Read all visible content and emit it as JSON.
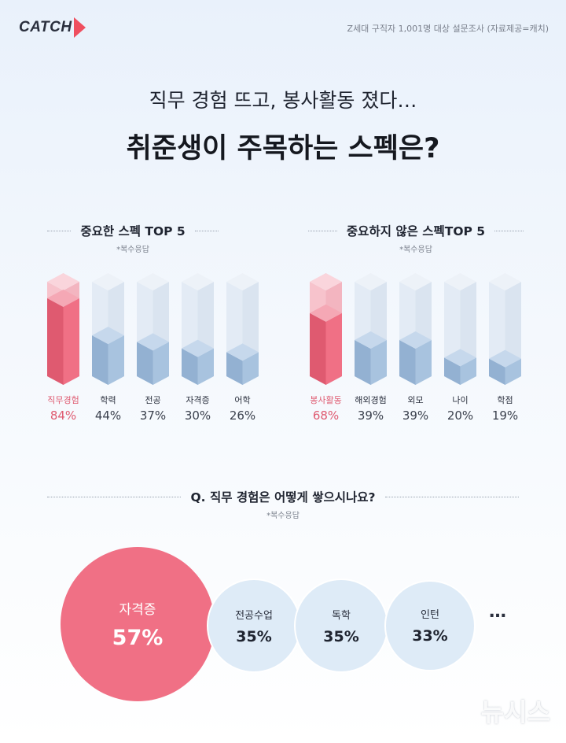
{
  "brand": "CATCH",
  "source": "Z세대 구직자 1,001명 대상 설문조사 (자료제공=캐치)",
  "title_sub": "직무 경험 뜨고, 봉사활동 졌다…",
  "title_main": "취준생이 주목하는 스펙은?",
  "watermark": "뉴시스",
  "chart_data": [
    {
      "type": "bar",
      "title": "중요한 스펙 TOP 5",
      "note": "*복수응답",
      "categories": [
        "직무경험",
        "학력",
        "전공",
        "자격증",
        "어학"
      ],
      "values": [
        84,
        44,
        37,
        30,
        26
      ],
      "value_labels": [
        "84%",
        "44%",
        "37%",
        "30%",
        "26%"
      ],
      "highlight_index": 0,
      "ylim": [
        0,
        100
      ]
    },
    {
      "type": "bar",
      "title": "중요하지 않은 스펙TOP 5",
      "note": "*복수응답",
      "categories": [
        "봉사활동",
        "해외경험",
        "외모",
        "나이",
        "학점"
      ],
      "values": [
        68,
        39,
        39,
        20,
        19
      ],
      "value_labels": [
        "68%",
        "39%",
        "39%",
        "20%",
        "19%"
      ],
      "highlight_index": 0,
      "ylim": [
        0,
        100
      ]
    },
    {
      "type": "bubble",
      "title": "Q. 직무 경험은 어떻게 쌓으시나요?",
      "note": "*복수응답",
      "categories": [
        "자격증",
        "전공수업",
        "독학",
        "인턴"
      ],
      "values": [
        57,
        35,
        35,
        33
      ],
      "value_labels": [
        "57%",
        "35%",
        "35%",
        "33%"
      ],
      "highlight_index": 0,
      "more": "…"
    }
  ],
  "colors": {
    "highlight": "#f07085",
    "highlight_dark": "#df5a70",
    "highlight_light": "#f5a8b5",
    "bar": "#a8c3df",
    "bar_dark": "#93b1d2",
    "bar_light": "#c6d8ec",
    "ghost": "#e3ebf5",
    "bubble": "#deebf7"
  }
}
